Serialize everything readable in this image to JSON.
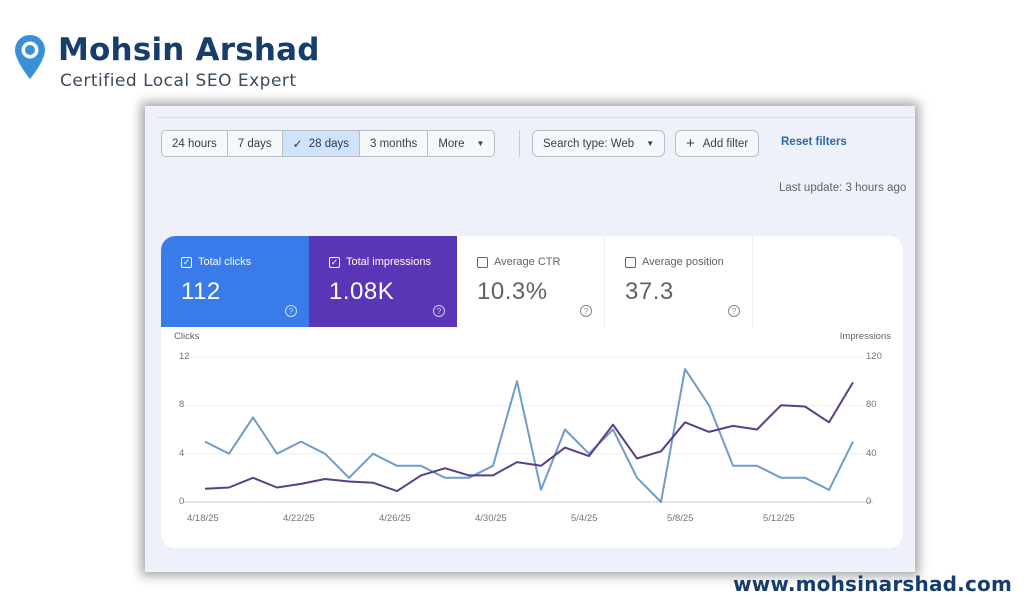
{
  "brand": {
    "name": "Mohsin Arshad",
    "tagline": "Certified Local SEO Expert",
    "website": "www.mohsinarshad.com",
    "colors": {
      "navy": "#173d6b",
      "pin": "#3a8fd9"
    }
  },
  "toolbar": {
    "ranges": [
      {
        "label": "24 hours",
        "active": false
      },
      {
        "label": "7 days",
        "active": false
      },
      {
        "label": "28 days",
        "active": true
      },
      {
        "label": "3 months",
        "active": false
      },
      {
        "label": "More",
        "active": false
      }
    ],
    "check_icon": "✓",
    "search_type": "Search type: Web",
    "add_filter": "Add filter",
    "reset_filters": "Reset filters",
    "last_update": "Last update: 3 hours ago"
  },
  "metrics": [
    {
      "label": "Total clicks",
      "value": "112",
      "checked": true,
      "color": "#3a7bea"
    },
    {
      "label": "Total impressions",
      "value": "1.08K",
      "checked": true,
      "color": "#5a35b5"
    },
    {
      "label": "Average CTR",
      "value": "10.3%",
      "checked": false
    },
    {
      "label": "Average position",
      "value": "37.3",
      "checked": false
    }
  ],
  "chart_data": {
    "type": "line",
    "title": "",
    "xlabel": "",
    "ylabel": "Clicks",
    "ylabel_right": "Impressions",
    "ylim": [
      0,
      12
    ],
    "ylim_right": [
      0,
      120
    ],
    "yticks_left": [
      "0",
      "4",
      "8",
      "12"
    ],
    "yticks_right": [
      "0",
      "40",
      "80",
      "120"
    ],
    "xtick_labels": [
      "4/18/25",
      "4/22/25",
      "4/26/25",
      "4/30/25",
      "5/4/25",
      "5/8/25",
      "5/12/25"
    ],
    "grid": true,
    "legend": "none",
    "x": [
      "4/18",
      "4/19",
      "4/20",
      "4/21",
      "4/22",
      "4/23",
      "4/24",
      "4/25",
      "4/26",
      "4/27",
      "4/28",
      "4/29",
      "4/30",
      "5/1",
      "5/2",
      "5/3",
      "5/4",
      "5/5",
      "5/6",
      "5/7",
      "5/8",
      "5/9",
      "5/10",
      "5/11",
      "5/12",
      "5/13",
      "5/14",
      "5/15"
    ],
    "series": [
      {
        "name": "Clicks",
        "axis": "left",
        "color": "#6f9cc9",
        "values": [
          5,
          4,
          7,
          4,
          5,
          4,
          2,
          4,
          3,
          3,
          2,
          2,
          3,
          10,
          1,
          6,
          4,
          6,
          2,
          0,
          11,
          8,
          3,
          3,
          2,
          2,
          1,
          5
        ]
      },
      {
        "name": "Impressions",
        "axis": "right",
        "color": "#5b3f86",
        "values": [
          11,
          12,
          20,
          12,
          15,
          19,
          17,
          16,
          9,
          22,
          28,
          22,
          22,
          33,
          30,
          45,
          38,
          64,
          36,
          42,
          66,
          58,
          63,
          60,
          80,
          79,
          66,
          99
        ]
      }
    ]
  }
}
